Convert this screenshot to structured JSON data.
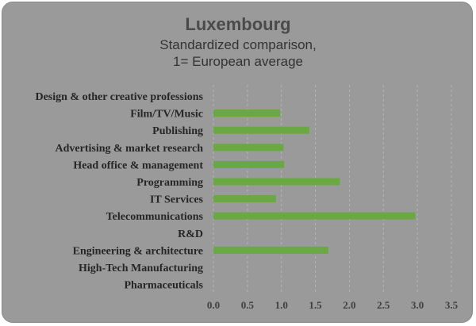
{
  "chart_data": {
    "type": "bar",
    "orientation": "horizontal",
    "title": "Luxembourg",
    "subtitle_lines": [
      "Standardized comparison,",
      "1= European average"
    ],
    "categories": [
      "Design & other creative professions",
      "Film/TV/Music",
      "Publishing",
      "Advertising & market research",
      "Head office & management",
      "Programming",
      "IT Services",
      "Telecommunications",
      "R&D",
      "Engineering & architecture",
      "High-Tech Manufacturing",
      "Pharmaceuticals"
    ],
    "values": [
      0,
      0.98,
      1.41,
      1.03,
      1.04,
      1.86,
      0.92,
      2.97,
      0,
      1.69,
      0,
      0
    ],
    "xlim": [
      0,
      3.5
    ],
    "xticks": [
      "0.0",
      "0.5",
      "1.0",
      "1.5",
      "2.0",
      "2.5",
      "3.0",
      "3.5"
    ],
    "grid": true,
    "legend": "none",
    "bar_color": "#6aa843",
    "background_color": "#9a9a9a"
  }
}
